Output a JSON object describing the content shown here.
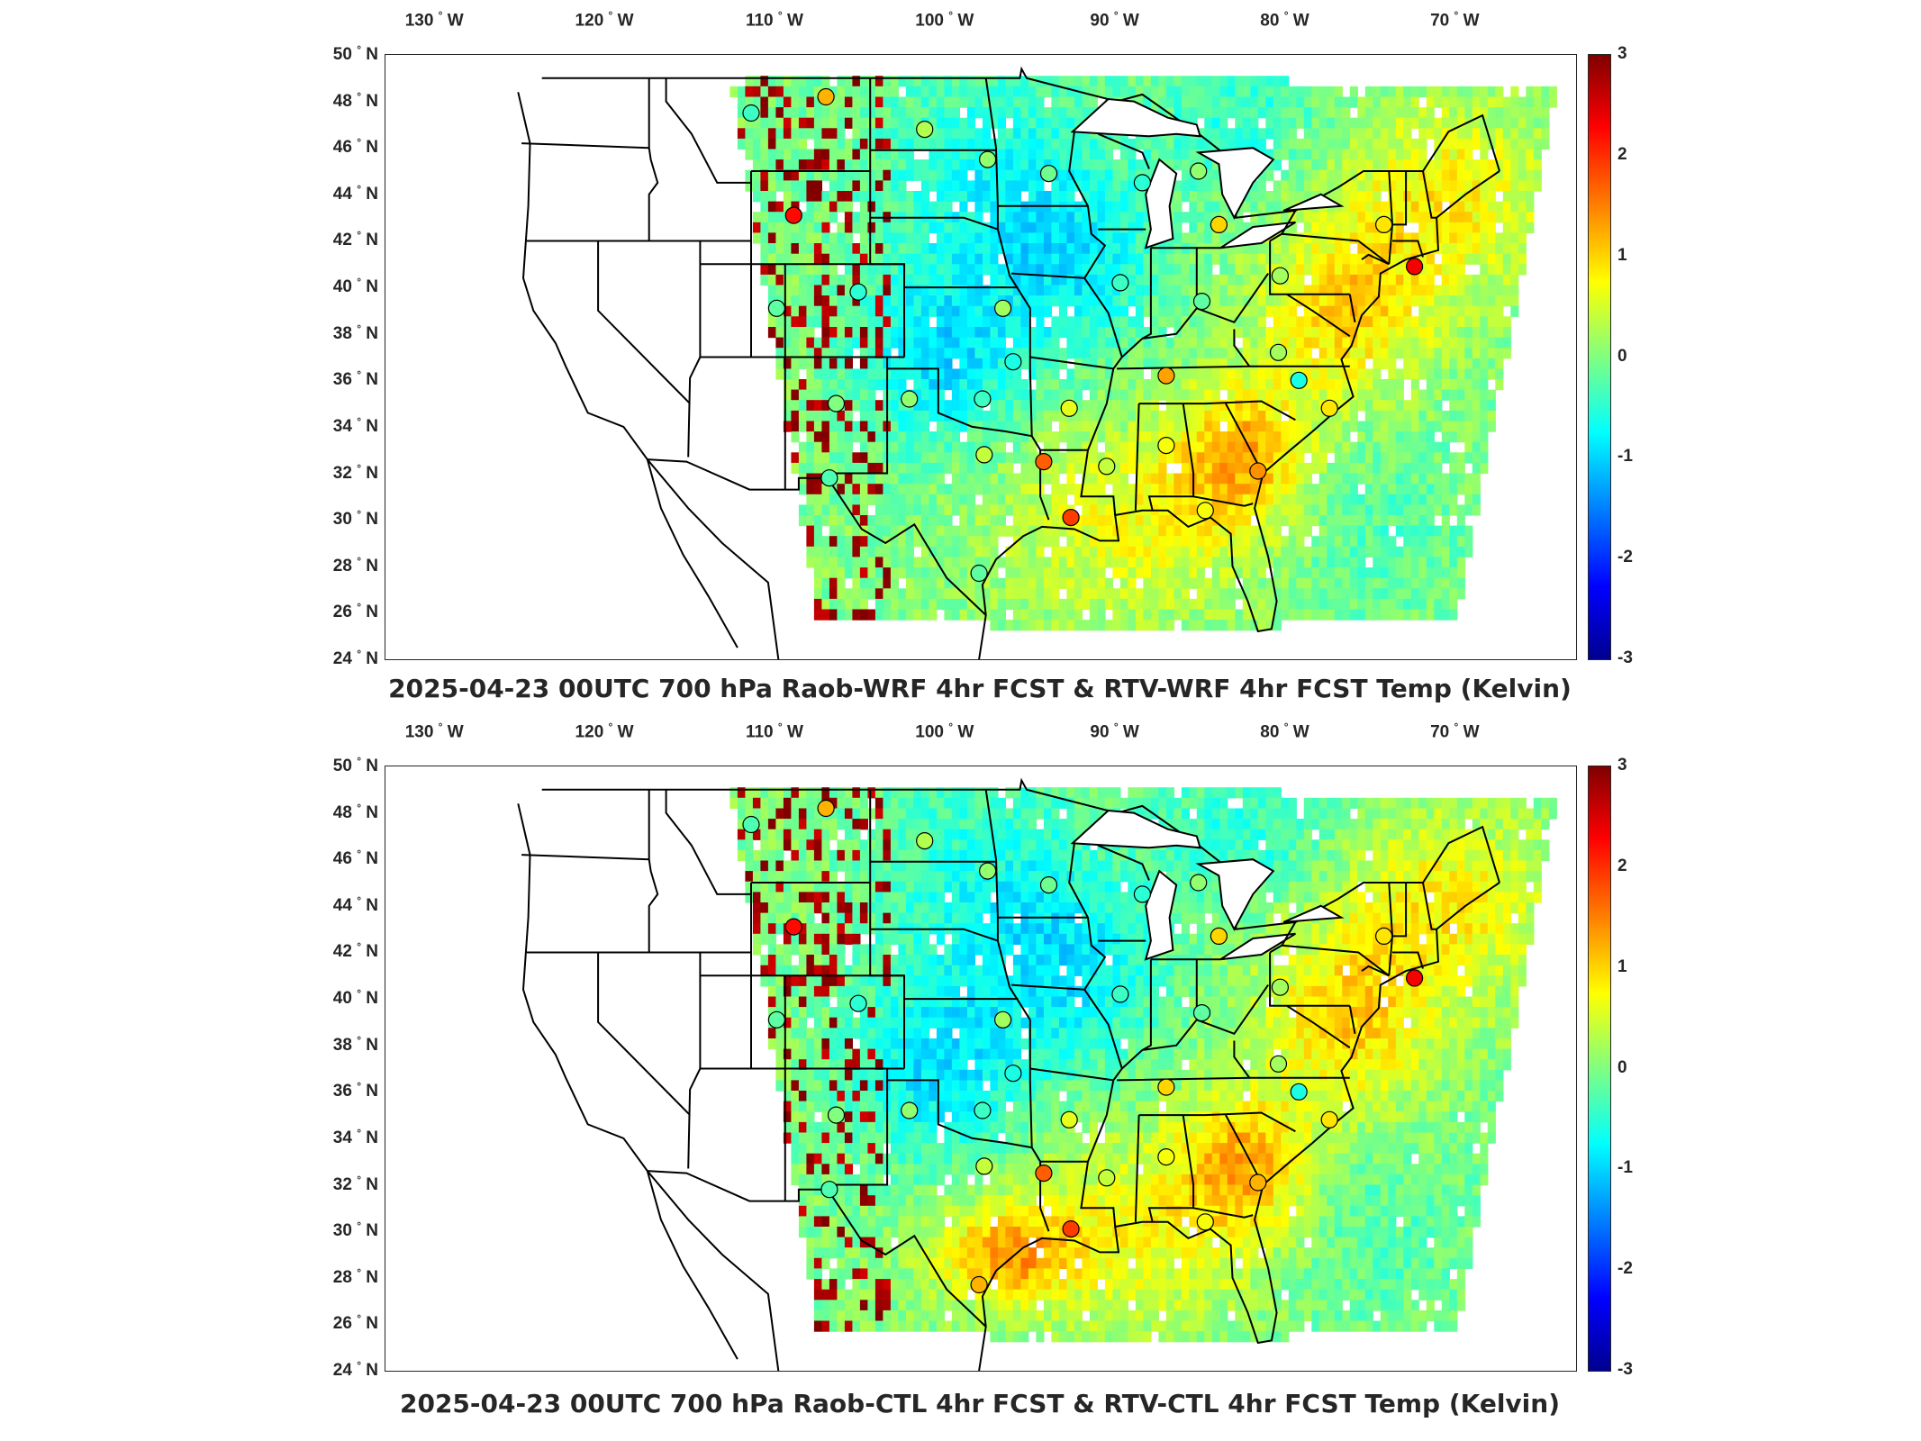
{
  "panels": [
    {
      "title": "2025-04-23 00UTC 700 hPa Raob-WRF 4hr FCST & RTV-WRF 4hr FCST Temp (Kelvin)"
    },
    {
      "title": "2025-04-23 00UTC 700 hPa Raob-CTL 4hr FCST & RTV-CTL 4hr FCST Temp (Kelvin)"
    }
  ],
  "lon_ticks": [
    "130",
    "120",
    "110",
    "100",
    "90",
    "80",
    "70"
  ],
  "lon_suffix": "W",
  "lat_ticks": [
    "50",
    "48",
    "46",
    "44",
    "42",
    "40",
    "38",
    "36",
    "34",
    "32",
    "30",
    "28",
    "26",
    "24"
  ],
  "lat_suffix": "N",
  "degree_symbol": "°",
  "colorbar": {
    "ticks": [
      "3",
      "2",
      "1",
      "0",
      "-1",
      "-2",
      "-3"
    ],
    "range": [
      -3,
      3
    ],
    "colormap": "jet"
  },
  "raob_sites_top": [
    {
      "lon": -111.0,
      "lat": 47.5,
      "v": -0.4
    },
    {
      "lon": -106.6,
      "lat": 48.2,
      "v": 1.2
    },
    {
      "lon": -100.8,
      "lat": 46.8,
      "v": 0.3
    },
    {
      "lon": -97.1,
      "lat": 45.5,
      "v": 0.1
    },
    {
      "lon": -93.5,
      "lat": 44.9,
      "v": -0.1
    },
    {
      "lon": -88.0,
      "lat": 44.5,
      "v": -0.5
    },
    {
      "lon": -84.7,
      "lat": 45.0,
      "v": 0.1
    },
    {
      "lon": -83.5,
      "lat": 42.7,
      "v": 1.0
    },
    {
      "lon": -73.8,
      "lat": 42.7,
      "v": 0.9
    },
    {
      "lon": -108.5,
      "lat": 43.1,
      "v": 2.2
    },
    {
      "lon": -109.5,
      "lat": 39.1,
      "v": -0.2
    },
    {
      "lon": -104.7,
      "lat": 39.8,
      "v": -0.5
    },
    {
      "lon": -96.2,
      "lat": 39.1,
      "v": 0.2
    },
    {
      "lon": -89.3,
      "lat": 40.2,
      "v": -0.4
    },
    {
      "lon": -84.5,
      "lat": 39.4,
      "v": -0.2
    },
    {
      "lon": -79.9,
      "lat": 40.5,
      "v": 0.2
    },
    {
      "lon": -72.0,
      "lat": 40.9,
      "v": 2.3
    },
    {
      "lon": -95.6,
      "lat": 36.8,
      "v": -0.6
    },
    {
      "lon": -86.6,
      "lat": 36.2,
      "v": 1.3
    },
    {
      "lon": -80.0,
      "lat": 37.2,
      "v": 0.2
    },
    {
      "lon": -78.8,
      "lat": 36.0,
      "v": -0.6
    },
    {
      "lon": -106.0,
      "lat": 35.0,
      "v": 0.0
    },
    {
      "lon": -101.7,
      "lat": 35.2,
      "v": 0.1
    },
    {
      "lon": -97.4,
      "lat": 35.2,
      "v": -0.4
    },
    {
      "lon": -92.3,
      "lat": 34.8,
      "v": 0.6
    },
    {
      "lon": -86.6,
      "lat": 33.2,
      "v": 0.7
    },
    {
      "lon": -77.0,
      "lat": 34.8,
      "v": 0.9
    },
    {
      "lon": -106.4,
      "lat": 31.8,
      "v": -0.3
    },
    {
      "lon": -97.3,
      "lat": 32.8,
      "v": 0.4
    },
    {
      "lon": -93.8,
      "lat": 32.5,
      "v": 1.7
    },
    {
      "lon": -90.1,
      "lat": 32.3,
      "v": 0.4
    },
    {
      "lon": -81.2,
      "lat": 32.1,
      "v": 1.4
    },
    {
      "lon": -84.3,
      "lat": 30.4,
      "v": 0.7
    },
    {
      "lon": -92.2,
      "lat": 30.1,
      "v": 1.9
    },
    {
      "lon": -97.6,
      "lat": 27.7,
      "v": -0.2
    }
  ],
  "raob_sites_bottom": [
    {
      "lon": -111.0,
      "lat": 47.5,
      "v": -0.3
    },
    {
      "lon": -106.6,
      "lat": 48.2,
      "v": 1.2
    },
    {
      "lon": -100.8,
      "lat": 46.8,
      "v": 0.3
    },
    {
      "lon": -97.1,
      "lat": 45.5,
      "v": 0.1
    },
    {
      "lon": -93.5,
      "lat": 44.9,
      "v": -0.1
    },
    {
      "lon": -88.0,
      "lat": 44.5,
      "v": -0.5
    },
    {
      "lon": -84.7,
      "lat": 45.0,
      "v": 0.1
    },
    {
      "lon": -83.5,
      "lat": 42.7,
      "v": 1.0
    },
    {
      "lon": -73.8,
      "lat": 42.7,
      "v": 0.9
    },
    {
      "lon": -108.5,
      "lat": 43.1,
      "v": 2.2
    },
    {
      "lon": -109.5,
      "lat": 39.1,
      "v": -0.2
    },
    {
      "lon": -104.7,
      "lat": 39.8,
      "v": -0.5
    },
    {
      "lon": -96.2,
      "lat": 39.1,
      "v": 0.2
    },
    {
      "lon": -89.3,
      "lat": 40.2,
      "v": -0.4
    },
    {
      "lon": -84.5,
      "lat": 39.4,
      "v": -0.2
    },
    {
      "lon": -79.9,
      "lat": 40.5,
      "v": 0.2
    },
    {
      "lon": -72.0,
      "lat": 40.9,
      "v": 2.3
    },
    {
      "lon": -95.6,
      "lat": 36.8,
      "v": -0.6
    },
    {
      "lon": -86.6,
      "lat": 36.2,
      "v": 1.0
    },
    {
      "lon": -80.0,
      "lat": 37.2,
      "v": 0.2
    },
    {
      "lon": -78.8,
      "lat": 36.0,
      "v": -0.6
    },
    {
      "lon": -106.0,
      "lat": 35.0,
      "v": 0.0
    },
    {
      "lon": -101.7,
      "lat": 35.2,
      "v": 0.1
    },
    {
      "lon": -97.4,
      "lat": 35.2,
      "v": -0.4
    },
    {
      "lon": -92.3,
      "lat": 34.8,
      "v": 0.6
    },
    {
      "lon": -86.6,
      "lat": 33.2,
      "v": 0.7
    },
    {
      "lon": -77.0,
      "lat": 34.8,
      "v": 0.9
    },
    {
      "lon": -106.4,
      "lat": 31.8,
      "v": -0.3
    },
    {
      "lon": -97.3,
      "lat": 32.8,
      "v": 0.4
    },
    {
      "lon": -93.8,
      "lat": 32.5,
      "v": 1.7
    },
    {
      "lon": -90.1,
      "lat": 32.3,
      "v": 0.4
    },
    {
      "lon": -81.2,
      "lat": 32.1,
      "v": 1.2
    },
    {
      "lon": -84.3,
      "lat": 30.4,
      "v": 0.7
    },
    {
      "lon": -92.2,
      "lat": 30.1,
      "v": 1.9
    },
    {
      "lon": -97.6,
      "lat": 27.7,
      "v": 1.2
    }
  ]
}
